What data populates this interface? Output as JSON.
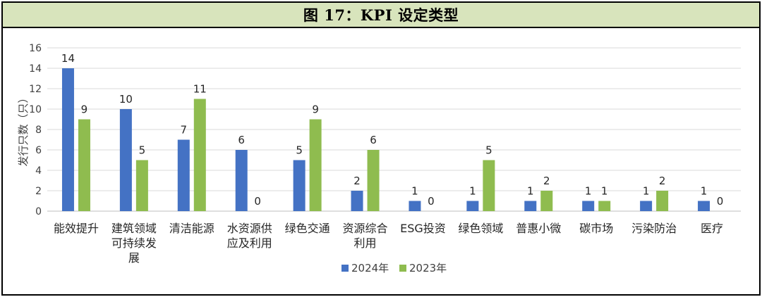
{
  "title": "图 17：KPI 设定类型",
  "chart_data": {
    "type": "bar",
    "ylabel": "发行只数（只）",
    "ylim": [
      0,
      16
    ],
    "yticks": [
      0,
      2,
      4,
      6,
      8,
      10,
      12,
      14,
      16
    ],
    "grid": true,
    "legend_position": "bottom-center",
    "categories": [
      [
        "能效提升"
      ],
      [
        "建筑领域",
        "可持续发",
        "展"
      ],
      [
        "清洁能源"
      ],
      [
        "水资源供",
        "应及利用"
      ],
      [
        "绿色交通"
      ],
      [
        "资源综合",
        "利用"
      ],
      [
        "ESG投资"
      ],
      [
        "绿色领域"
      ],
      [
        "普惠小微"
      ],
      [
        "碳市场"
      ],
      [
        "污染防治"
      ],
      [
        "医疗"
      ]
    ],
    "series": [
      {
        "name": "2024年",
        "color": "#4472c4",
        "values": [
          14,
          10,
          7,
          6,
          5,
          2,
          1,
          1,
          1,
          1,
          1,
          1
        ]
      },
      {
        "name": "2023年",
        "color": "#8fbc4f",
        "values": [
          9,
          5,
          11,
          0,
          9,
          6,
          0,
          5,
          2,
          1,
          2,
          0
        ]
      }
    ]
  }
}
